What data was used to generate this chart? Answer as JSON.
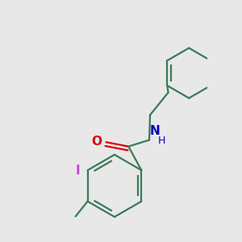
{
  "bg_color": "#e8e8e8",
  "bond_color": "#3a7a5a",
  "O_color": "#dd0000",
  "N_color": "#0000bb",
  "I_color": "#cc44cc",
  "line_width": 1.6,
  "font_size": 10,
  "fig_w": 3.0,
  "fig_h": 3.0,
  "dpi": 100,
  "xlim": [
    -1.5,
    2.5
  ],
  "ylim": [
    -3.0,
    2.5
  ]
}
